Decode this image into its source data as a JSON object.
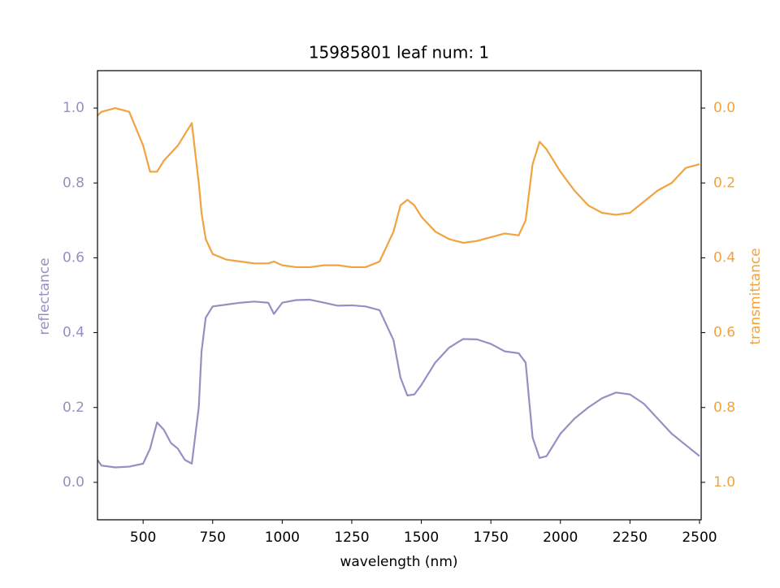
{
  "chart_data": {
    "type": "line",
    "title": "15985801 leaf num: 1",
    "xlabel": "wavelength (nm)",
    "ylabel": "reflectance",
    "y2label": "transmittance",
    "x": [
      336,
      350,
      400,
      450,
      500,
      525,
      550,
      575,
      600,
      625,
      650,
      675,
      700,
      710,
      725,
      750,
      800,
      850,
      900,
      950,
      970,
      1000,
      1050,
      1100,
      1150,
      1200,
      1250,
      1300,
      1350,
      1400,
      1425,
      1450,
      1475,
      1500,
      1550,
      1600,
      1650,
      1700,
      1750,
      1800,
      1850,
      1875,
      1900,
      1925,
      1950,
      2000,
      2050,
      2100,
      2150,
      2200,
      2250,
      2300,
      2350,
      2400,
      2450,
      2500
    ],
    "series": [
      {
        "name": "reflectance",
        "color": "#998ec3",
        "axis": "y",
        "values": [
          0.06,
          0.045,
          0.04,
          0.042,
          0.05,
          0.09,
          0.16,
          0.14,
          0.105,
          0.09,
          0.06,
          0.05,
          0.2,
          0.35,
          0.44,
          0.47,
          0.475,
          0.48,
          0.483,
          0.48,
          0.45,
          0.48,
          0.487,
          0.488,
          0.48,
          0.472,
          0.473,
          0.47,
          0.46,
          0.38,
          0.28,
          0.232,
          0.235,
          0.26,
          0.32,
          0.36,
          0.383,
          0.382,
          0.37,
          0.35,
          0.345,
          0.32,
          0.12,
          0.065,
          0.07,
          0.13,
          0.17,
          0.2,
          0.225,
          0.24,
          0.235,
          0.21,
          0.17,
          0.13,
          0.1,
          0.07
        ]
      },
      {
        "name": "transmittance",
        "color": "#f1a340",
        "axis": "y2",
        "values": [
          0.02,
          0.01,
          0.0,
          0.01,
          0.1,
          0.17,
          0.17,
          0.14,
          0.12,
          0.1,
          0.07,
          0.04,
          0.2,
          0.28,
          0.35,
          0.39,
          0.405,
          0.41,
          0.415,
          0.415,
          0.41,
          0.42,
          0.425,
          0.425,
          0.42,
          0.42,
          0.425,
          0.425,
          0.41,
          0.33,
          0.26,
          0.245,
          0.26,
          0.29,
          0.33,
          0.35,
          0.36,
          0.355,
          0.345,
          0.335,
          0.34,
          0.3,
          0.15,
          0.09,
          0.11,
          0.17,
          0.22,
          0.26,
          0.28,
          0.285,
          0.28,
          0.25,
          0.22,
          0.2,
          0.16,
          0.15
        ]
      }
    ],
    "xlim": [
      336,
      2506
    ],
    "xticks": [
      500,
      750,
      1000,
      1250,
      1500,
      1750,
      2000,
      2250,
      2500
    ],
    "ylim": [
      -0.1,
      1.1
    ],
    "yticks": [
      {
        "value": 0,
        "label": "0.0"
      },
      0.2,
      0.4,
      0.6,
      0.8,
      {
        "value": 1,
        "label": "1.0"
      }
    ],
    "y2lim": [
      1.1,
      -0.1
    ],
    "y2ticks": [
      {
        "value": 0,
        "label": "0.0"
      },
      0.2,
      0.4,
      0.6,
      0.8,
      {
        "value": 1,
        "label": "1.0"
      }
    ]
  }
}
